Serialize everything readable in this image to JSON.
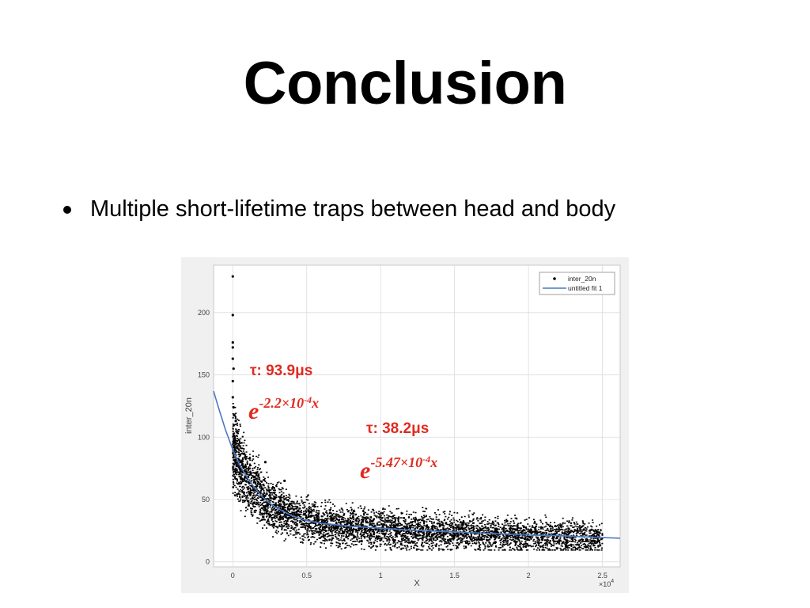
{
  "slide": {
    "title": "Conclusion",
    "bullets": [
      "Multiple short-lifetime traps between head and body"
    ]
  },
  "colors": {
    "annotation": "#e02b20",
    "fit_line": "#4a78c4",
    "points": "#000000",
    "plot_bg": "#ffffff",
    "figure_bg": "#f0f0f0"
  },
  "chart_data": {
    "type": "scatter",
    "title": "",
    "xlabel": "X",
    "ylabel": "inter_20n",
    "x_exponent_label": "×10",
    "x_exponent_power": "4",
    "xlim": [
      -0.13,
      2.62
    ],
    "ylim": [
      -4,
      238
    ],
    "x_ticks": [
      0,
      0.5,
      1,
      1.5,
      2,
      2.5
    ],
    "x_tick_labels": [
      "0",
      "0.5",
      "1",
      "1.5",
      "2",
      "2.5"
    ],
    "y_ticks": [
      0,
      50,
      100,
      150,
      200
    ],
    "y_tick_labels": [
      "0",
      "50",
      "100",
      "150",
      "200"
    ],
    "grid": true,
    "legend_position": "top-right",
    "series": [
      {
        "name": "inter_20n",
        "kind": "scatter",
        "outliers": [
          [
            0,
            229
          ],
          [
            0,
            198
          ],
          [
            0,
            176
          ],
          [
            0,
            172
          ],
          [
            0,
            163
          ],
          [
            0.005,
            155
          ],
          [
            0,
            145
          ],
          [
            0,
            132
          ],
          [
            0.005,
            124
          ],
          [
            0.01,
            118
          ],
          [
            0.02,
            113
          ],
          [
            0.03,
            104
          ],
          [
            0.22,
            80
          ],
          [
            0.35,
            65
          ]
        ],
        "band_description": "dense noisy points following a decaying curve from about 100 near x=0 to about 20 at x=2.5"
      },
      {
        "name": "untitled fit 1",
        "kind": "line",
        "x": [
          -0.13,
          -0.1,
          -0.05,
          0,
          0.05,
          0.1,
          0.15,
          0.2,
          0.25,
          0.3,
          0.4,
          0.5,
          0.6,
          0.8,
          1.0,
          1.2,
          1.5,
          1.8,
          2.0,
          2.2,
          2.5,
          2.62
        ],
        "y": [
          137,
          125,
          106,
          90,
          77,
          67,
          59,
          52,
          47,
          43,
          37,
          33,
          31,
          28.5,
          27,
          25.5,
          24,
          22.5,
          21.5,
          21,
          19.5,
          19
        ]
      }
    ],
    "annotations": [
      {
        "tau": "τ: 93.9μs",
        "base": "e",
        "exponent": "-2.2×10",
        "exponent_power": "-4",
        "variable": "x"
      },
      {
        "tau": "τ: 38.2μs",
        "base": "e",
        "exponent": "-5.47×10",
        "exponent_power": "-4",
        "variable": "x"
      }
    ]
  }
}
